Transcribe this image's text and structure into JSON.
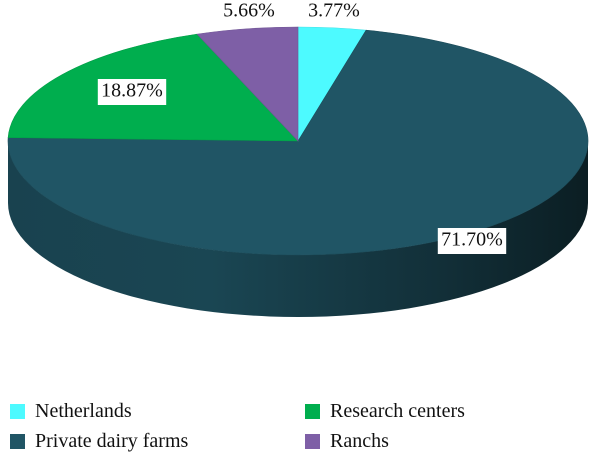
{
  "chart_data": {
    "type": "pie",
    "title": "",
    "slices": [
      {
        "label": "Netherlands",
        "value": 3.77,
        "display": "3.77%",
        "color": "#4DFAFF"
      },
      {
        "label": "Private dairy farms",
        "value": 71.7,
        "display": "71.70%",
        "color": "#205565"
      },
      {
        "label": "Research centers",
        "value": 18.87,
        "display": "18.87%",
        "color": "#00AE4E"
      },
      {
        "label": "Ranchs",
        "value": 5.66,
        "display": "5.66%",
        "color": "#7E5FA6"
      }
    ],
    "legend": {
      "placement": "bottom",
      "items": [
        {
          "label": "Netherlands",
          "color": "#4DFAFF"
        },
        {
          "label": "Research centers",
          "color": "#00AE4E"
        },
        {
          "label": "Private dairy farms",
          "color": "#205565"
        },
        {
          "label": "Ranchs",
          "color": "#7E5FA6"
        }
      ]
    }
  }
}
